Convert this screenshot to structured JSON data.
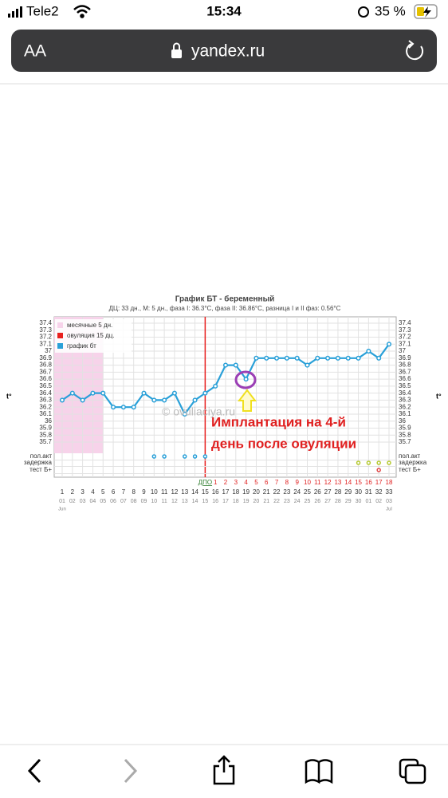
{
  "status_bar": {
    "carrier": "Tele2",
    "time": "15:34",
    "battery": "35 %"
  },
  "browser": {
    "text_size": "AA",
    "url": "yandex.ru"
  },
  "chart_data": {
    "type": "line",
    "title": "График БТ - беременный",
    "subtitle": "ДЦ: 33 дн., М: 5 дн., фаза I: 36.3°С, фаза II: 36.86°С, разница I и II фаз: 0.56°С",
    "axis_label": "t°",
    "x": [
      1,
      2,
      3,
      4,
      5,
      6,
      7,
      8,
      9,
      10,
      11,
      12,
      13,
      14,
      15,
      16,
      17,
      18,
      19,
      20,
      21,
      22,
      23,
      24,
      25,
      26,
      27,
      28,
      29,
      30,
      31,
      32,
      33
    ],
    "dates": [
      "01",
      "02",
      "03",
      "04",
      "05",
      "06",
      "07",
      "08",
      "09",
      "10",
      "11",
      "12",
      "13",
      "14",
      "15",
      "16",
      "17",
      "18",
      "19",
      "20",
      "21",
      "22",
      "23",
      "24",
      "25",
      "26",
      "27",
      "28",
      "29",
      "30",
      "01",
      "02",
      "03"
    ],
    "months": [
      {
        "label": "Jun",
        "x": 1
      },
      {
        "label": "Jul",
        "x": 33
      }
    ],
    "dpo_label": "ДПО",
    "dpo": [
      1,
      2,
      3,
      4,
      5,
      6,
      7,
      8,
      9,
      10,
      11,
      12,
      13,
      14,
      15,
      16,
      17,
      18
    ],
    "ovulation_line": 15,
    "menstruation_span": [
      1,
      5
    ],
    "series": [
      {
        "name": "график бт",
        "color": "#2aa0d8",
        "values": [
          36.3,
          36.4,
          36.3,
          36.4,
          36.4,
          36.2,
          36.2,
          36.2,
          36.4,
          36.3,
          36.3,
          36.4,
          36.1,
          36.3,
          36.4,
          36.5,
          36.8,
          36.8,
          36.6,
          36.9,
          36.9,
          36.9,
          36.9,
          36.9,
          36.8,
          36.9,
          36.9,
          36.9,
          36.9,
          36.9,
          37.0,
          36.9,
          37.1
        ]
      }
    ],
    "legend": [
      {
        "label": "месячные 5 дн.",
        "color": "#f7d3ea"
      },
      {
        "label": "овуляция 15 дц.",
        "color": "#e8201f"
      }
    ],
    "marker_rows": [
      {
        "name": "пол.акт",
        "color": "#2aa0d8",
        "x": [
          10,
          11,
          13,
          14,
          15
        ]
      },
      {
        "name": "задержка",
        "color": "#b5c930",
        "x": [
          30,
          31,
          32,
          33
        ]
      },
      {
        "name": "тест Б+",
        "color": "#e04848",
        "x": [
          32
        ]
      }
    ],
    "xlim": [
      1,
      33
    ],
    "ylim": [
      35.7,
      37.4
    ],
    "yticks": [
      35.7,
      35.8,
      35.9,
      36,
      36.1,
      36.2,
      36.3,
      36.4,
      36.5,
      36.6,
      36.7,
      36.8,
      36.9,
      37,
      37.1,
      37.2,
      37.3,
      37.4
    ],
    "grid": true,
    "watermark": "© ovuliaciya.ru",
    "annotation": [
      "Имплантация на 4-й",
      "день после овуляции"
    ]
  }
}
